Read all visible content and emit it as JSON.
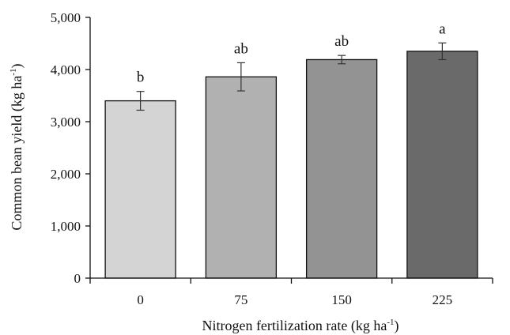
{
  "chart_data": {
    "type": "bar",
    "xlabel_main": "Nitrogen fertilization rate (kg ha",
    "xlabel_sup": "-1",
    "xlabel_end": ")",
    "ylabel_main": "Common bean yield (kg ha",
    "ylabel_sup": "-1",
    "ylabel_end": ")",
    "categories": [
      "0",
      "75",
      "150",
      "225"
    ],
    "values": [
      3400,
      3860,
      4190,
      4350
    ],
    "errors": [
      180,
      270,
      80,
      160
    ],
    "significance": [
      "b",
      "ab",
      "ab",
      "a"
    ],
    "bar_colors": [
      "#d4d4d4",
      "#b1b1b1",
      "#939393",
      "#6a6a6a"
    ],
    "ylim": [
      0,
      5000
    ],
    "yticks": [
      0,
      1000,
      2000,
      3000,
      4000,
      5000
    ],
    "ytick_labels": [
      "0",
      "1,000",
      "2,000",
      "3,000",
      "4,000",
      "5,000"
    ],
    "grid": false,
    "legend": "none"
  }
}
